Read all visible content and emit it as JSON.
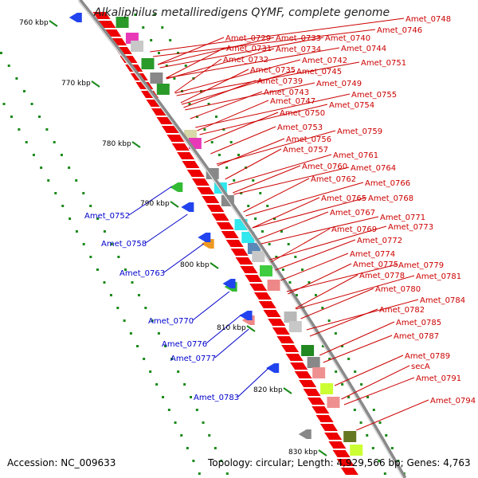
{
  "title": "Alkaliphilus metalliredigens QYMF, complete genome",
  "footer": {
    "accession": "Accession: NC_009633",
    "summary": "Topology: circular; Length: 4,929,566 bp; Genes: 4,763"
  },
  "ticks": [
    "760 kbp",
    "770 kbp",
    "780 kbp",
    "790 kbp",
    "800 kbp",
    "810 kbp",
    "820 kbp",
    "830 kbp"
  ],
  "colors": {
    "forward_label": "#cc0000",
    "reverse_label": "#0000cc",
    "gene": "#ee0000",
    "backbone": "#8a8a8a"
  },
  "forward_genes": [
    "Amet_0729",
    "Amet_0731",
    "Amet_0732",
    "Amet_0733",
    "Amet_0734",
    "Amet_0735",
    "Amet_0739",
    "Amet_0740",
    "Amet_0742",
    "Amet_0743",
    "Amet_0744",
    "Amet_0745",
    "Amet_0746",
    "Amet_0747",
    "Amet_0748",
    "Amet_0749",
    "Amet_0750",
    "Amet_0751",
    "Amet_0753",
    "Amet_0754",
    "Amet_0755",
    "Amet_0756",
    "Amet_0757",
    "Amet_0759",
    "Amet_0760",
    "Amet_0761",
    "Amet_0762",
    "Amet_0764",
    "Amet_0765",
    "Amet_0766",
    "Amet_0767",
    "Amet_0768",
    "Amet_0769",
    "Amet_0771",
    "Amet_0772",
    "Amet_0773",
    "Amet_0774",
    "Amet_0775",
    "Amet_0778",
    "Amet_0779",
    "Amet_0780",
    "Amet_0781",
    "Amet_0782",
    "Amet_0784",
    "Amet_0785",
    "Amet_0787",
    "Amet_0789",
    "secA",
    "Amet_0791",
    "Amet_0794"
  ],
  "reverse_genes": [
    "Amet_0752",
    "Amet_0758",
    "Amet_0763",
    "Amet_0770",
    "Amet_0776",
    "Amet_0777",
    "Amet_0783"
  ]
}
